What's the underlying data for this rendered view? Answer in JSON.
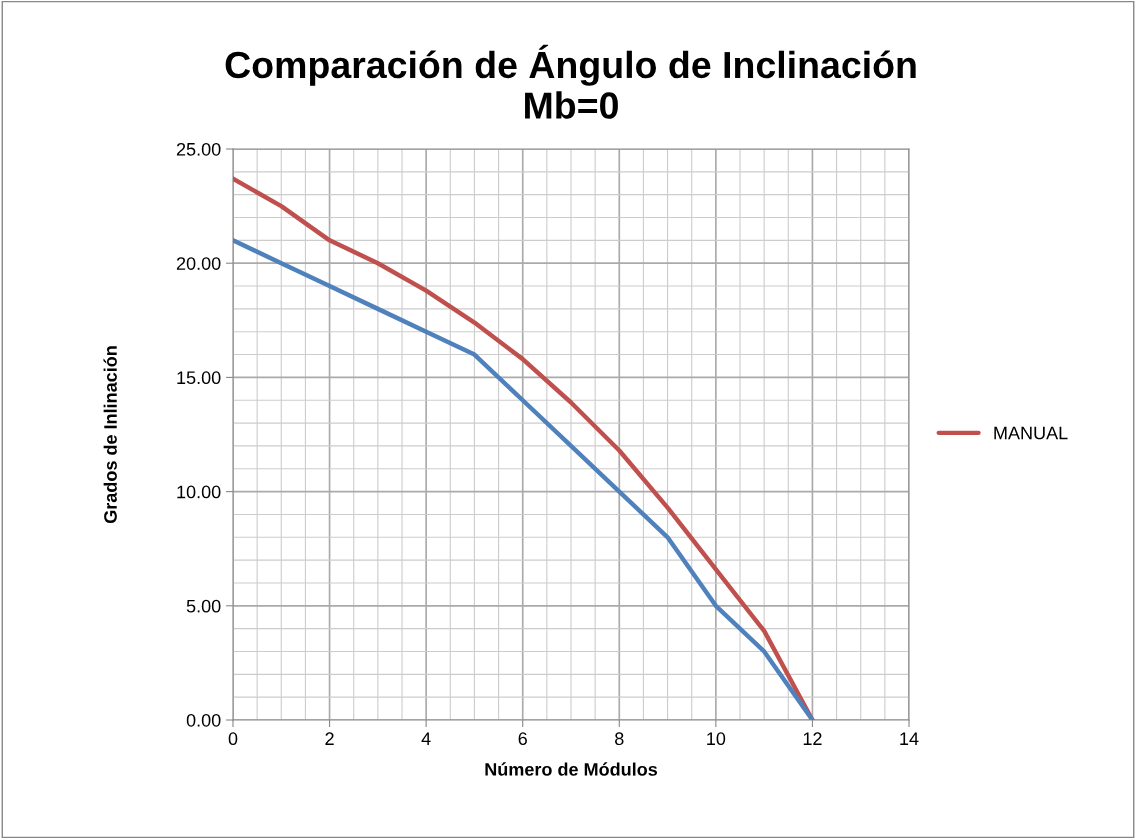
{
  "chart_data": {
    "type": "line",
    "title": "Comparación de Ángulo de Inclinación\nMb=0",
    "xlabel": "Número de Módulos",
    "ylabel": "Grados de Inlinación",
    "x": [
      0,
      1,
      2,
      3,
      4,
      5,
      6,
      7,
      8,
      9,
      10,
      11,
      12
    ],
    "series": [
      {
        "name": "MANUAL",
        "color": "#c0504d",
        "values": [
          23.7,
          22.5,
          21.0,
          20.0,
          18.8,
          17.4,
          15.8,
          13.9,
          11.8,
          9.3,
          6.6,
          3.9,
          0
        ]
      },
      {
        "color": "#4f81bd",
        "values": [
          21.0,
          20.0,
          19.0,
          18.0,
          17.0,
          16.0,
          14.0,
          12.0,
          10.0,
          8.0,
          5.0,
          3.0,
          0
        ]
      }
    ],
    "xlim": [
      0,
      14
    ],
    "xticks": [
      0,
      2,
      4,
      6,
      8,
      10,
      12,
      14
    ],
    "ylim": [
      0,
      25
    ],
    "yticks": [
      {
        "value": 0,
        "label": "0.00"
      },
      {
        "value": 5,
        "label": "5.00"
      },
      {
        "value": 10,
        "label": "10.00"
      },
      {
        "value": 15,
        "label": "15.00"
      },
      {
        "value": 20,
        "label": "20.00"
      },
      {
        "value": 25,
        "label": "25.00"
      }
    ],
    "grid": true,
    "legend": "right",
    "marker": "none",
    "line_style": "solid"
  }
}
